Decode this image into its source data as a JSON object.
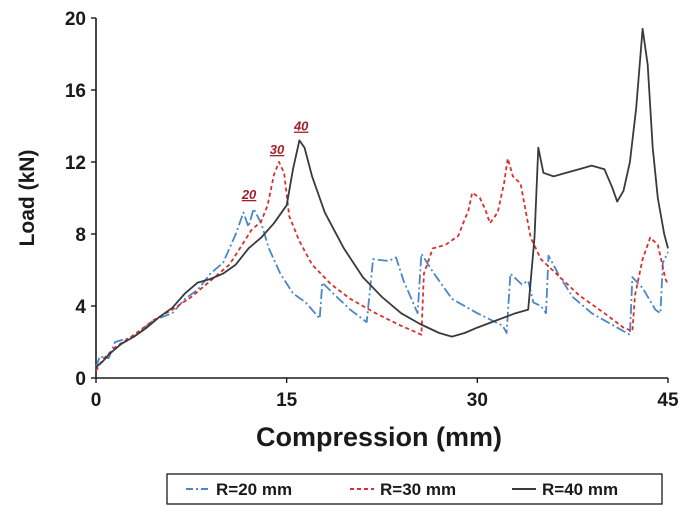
{
  "chart_data": {
    "type": "line",
    "xlabel": "Compression (mm)",
    "ylabel": "Load (kN)",
    "xlim": [
      0,
      45
    ],
    "ylim": [
      0,
      20
    ],
    "x_ticks": [
      "0",
      "15",
      "30",
      "45"
    ],
    "y_ticks": [
      "0",
      "4",
      "8",
      "12",
      "16",
      "20"
    ],
    "grid": false,
    "legend_position": "bottom",
    "peak_labels": [
      {
        "text": "20",
        "x": 12.2,
        "y": 9.5,
        "color": "#a0202a"
      },
      {
        "text": "30",
        "x": 14.4,
        "y": 12.0,
        "color": "#a0202a"
      },
      {
        "text": "40",
        "x": 16.3,
        "y": 13.3,
        "color": "#a0202a"
      }
    ],
    "series": [
      {
        "name": "R=20 mm",
        "color": "#4a86c8",
        "dash": "dashdot",
        "points": [
          [
            0,
            0.6
          ],
          [
            0.3,
            1.2
          ],
          [
            1,
            1.1
          ],
          [
            1.5,
            2.0
          ],
          [
            3,
            2.3
          ],
          [
            4.5,
            3.2
          ],
          [
            6,
            3.6
          ],
          [
            7,
            4.4
          ],
          [
            8,
            4.9
          ],
          [
            9,
            5.8
          ],
          [
            10,
            6.4
          ],
          [
            11,
            8.0
          ],
          [
            11.6,
            9.2
          ],
          [
            12.0,
            8.4
          ],
          [
            12.4,
            9.4
          ],
          [
            13,
            8.6
          ],
          [
            13.6,
            7.2
          ],
          [
            14.5,
            5.8
          ],
          [
            15.5,
            4.7
          ],
          [
            16.5,
            4.2
          ],
          [
            17.6,
            3.3
          ],
          [
            17.8,
            5.3
          ],
          [
            18.8,
            4.6
          ],
          [
            20,
            3.8
          ],
          [
            21.3,
            3.1
          ],
          [
            21.8,
            6.6
          ],
          [
            23,
            6.5
          ],
          [
            23.6,
            6.7
          ],
          [
            24.2,
            5.4
          ],
          [
            25.3,
            3.6
          ],
          [
            25.6,
            6.9
          ],
          [
            26.5,
            5.9
          ],
          [
            28,
            4.4
          ],
          [
            30,
            3.6
          ],
          [
            32,
            2.9
          ],
          [
            32.3,
            2.5
          ],
          [
            32.6,
            5.8
          ],
          [
            33.5,
            5.2
          ],
          [
            34,
            5.4
          ],
          [
            34.4,
            4.2
          ],
          [
            35,
            4.0
          ],
          [
            35.4,
            3.6
          ],
          [
            35.6,
            6.8
          ],
          [
            36.5,
            5.6
          ],
          [
            37.5,
            4.5
          ],
          [
            39,
            3.6
          ],
          [
            40.5,
            3.0
          ],
          [
            42,
            2.4
          ],
          [
            42.2,
            5.6
          ],
          [
            43,
            5.0
          ],
          [
            44,
            3.8
          ],
          [
            44.4,
            3.6
          ],
          [
            44.6,
            6.4
          ],
          [
            45,
            7.0
          ]
        ]
      },
      {
        "name": "R=30 mm",
        "color": "#d9302e",
        "dash": "dashed",
        "points": [
          [
            0,
            0.4
          ],
          [
            0.5,
            1.0
          ],
          [
            1.5,
            1.7
          ],
          [
            3,
            2.4
          ],
          [
            4.5,
            3.2
          ],
          [
            6,
            3.8
          ],
          [
            7.5,
            4.5
          ],
          [
            9,
            5.4
          ],
          [
            10.5,
            6.3
          ],
          [
            11.5,
            7.4
          ],
          [
            12.2,
            8.2
          ],
          [
            13,
            8.7
          ],
          [
            13.5,
            9.6
          ],
          [
            14.0,
            11.3
          ],
          [
            14.4,
            12.0
          ],
          [
            14.8,
            11.4
          ],
          [
            15.2,
            9.0
          ],
          [
            16,
            7.6
          ],
          [
            17,
            6.3
          ],
          [
            18.5,
            5.2
          ],
          [
            20,
            4.4
          ],
          [
            22,
            3.6
          ],
          [
            24,
            2.9
          ],
          [
            25,
            2.6
          ],
          [
            25.6,
            2.4
          ],
          [
            25.8,
            5.8
          ],
          [
            26.5,
            7.2
          ],
          [
            27.5,
            7.4
          ],
          [
            28.5,
            7.9
          ],
          [
            29,
            8.8
          ],
          [
            29.3,
            9.3
          ],
          [
            29.6,
            10.3
          ],
          [
            30.2,
            10.0
          ],
          [
            30.6,
            9.4
          ],
          [
            31.0,
            8.6
          ],
          [
            31.6,
            9.2
          ],
          [
            32.1,
            10.8
          ],
          [
            32.4,
            12.2
          ],
          [
            32.8,
            11.2
          ],
          [
            33.4,
            10.8
          ],
          [
            33.8,
            9.3
          ],
          [
            34.2,
            7.8
          ],
          [
            35,
            6.6
          ],
          [
            36.5,
            5.6
          ],
          [
            38,
            4.6
          ],
          [
            40,
            3.6
          ],
          [
            41.5,
            2.8
          ],
          [
            42.2,
            2.6
          ],
          [
            42.4,
            4.6
          ],
          [
            43,
            6.6
          ],
          [
            43.6,
            7.8
          ],
          [
            44.2,
            7.4
          ],
          [
            44.8,
            5.5
          ],
          [
            45,
            5.2
          ]
        ]
      },
      {
        "name": "R=40 mm",
        "color": "#3a3a3a",
        "dash": "solid",
        "points": [
          [
            0,
            0.6
          ],
          [
            0.5,
            0.9
          ],
          [
            1,
            1.3
          ],
          [
            2,
            1.9
          ],
          [
            3,
            2.3
          ],
          [
            4,
            2.8
          ],
          [
            5,
            3.4
          ],
          [
            6,
            3.9
          ],
          [
            7,
            4.7
          ],
          [
            8,
            5.3
          ],
          [
            9,
            5.5
          ],
          [
            10,
            5.8
          ],
          [
            11,
            6.3
          ],
          [
            12,
            7.2
          ],
          [
            13,
            7.8
          ],
          [
            14,
            8.6
          ],
          [
            15,
            9.6
          ],
          [
            15.5,
            11.6
          ],
          [
            16.0,
            13.2
          ],
          [
            16.4,
            12.8
          ],
          [
            17,
            11.2
          ],
          [
            18,
            9.2
          ],
          [
            19.5,
            7.2
          ],
          [
            21,
            5.6
          ],
          [
            22.5,
            4.5
          ],
          [
            24,
            3.6
          ],
          [
            25.5,
            3.0
          ],
          [
            27,
            2.5
          ],
          [
            28,
            2.3
          ],
          [
            29,
            2.5
          ],
          [
            30,
            2.8
          ],
          [
            31.5,
            3.2
          ],
          [
            33,
            3.6
          ],
          [
            34.0,
            3.8
          ],
          [
            34.2,
            5.4
          ],
          [
            34.5,
            7.8
          ],
          [
            34.8,
            12.8
          ],
          [
            35.2,
            11.4
          ],
          [
            36,
            11.2
          ],
          [
            37,
            11.4
          ],
          [
            38,
            11.6
          ],
          [
            39,
            11.8
          ],
          [
            40,
            11.6
          ],
          [
            40.6,
            10.6
          ],
          [
            41,
            9.8
          ],
          [
            41.5,
            10.4
          ],
          [
            42,
            12.0
          ],
          [
            42.5,
            15.0
          ],
          [
            43.0,
            19.4
          ],
          [
            43.4,
            17.4
          ],
          [
            43.8,
            12.8
          ],
          [
            44.2,
            10.0
          ],
          [
            44.7,
            8.0
          ],
          [
            45,
            7.2
          ]
        ]
      }
    ]
  }
}
